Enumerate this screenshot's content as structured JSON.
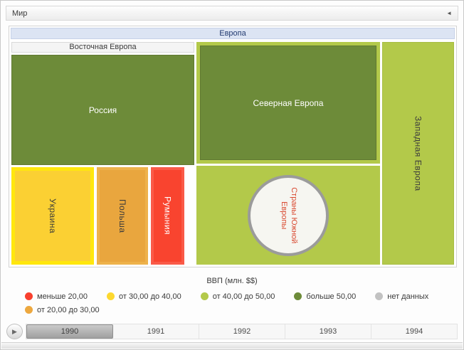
{
  "window": {
    "title": "Мир",
    "collapse_icon": "◄"
  },
  "treemap": {
    "europe": "Европа",
    "eastern_europe": "Восточная Европа",
    "russia": "Россия",
    "ukraine": "Украина",
    "poland": "Польша",
    "romania": "Румыния",
    "northern_europe": "Северная Европа",
    "southern_europe": "Страны Южной Европы",
    "western_europe": "Западная Европа"
  },
  "legend": {
    "title": "ВВП (млн. $$)",
    "items": [
      {
        "label": "меньше 20,00",
        "color": "#f8402e"
      },
      {
        "label": "от 20,00 до 30,00",
        "color": "#eda83f"
      },
      {
        "label": "от 30,00 до 40,00",
        "color": "#fdd82f"
      },
      {
        "label": "от 40,00 до 50,00",
        "color": "#b3c94a"
      },
      {
        "label": "больше 50,00",
        "color": "#6d8b39"
      },
      {
        "label": "нет данных",
        "color": "#c2c2c2"
      }
    ]
  },
  "timeline": {
    "play_icon": "▶",
    "years": [
      "1990",
      "1991",
      "1992",
      "1993",
      "1994"
    ],
    "selected_year": "1990"
  },
  "chart_data": {
    "type": "treemap",
    "title": "ВВП (млн. $$)",
    "root": "Мир",
    "selected_year": "1990",
    "years": [
      "1990",
      "1991",
      "1992",
      "1993",
      "1994"
    ],
    "nodes": [
      {
        "name": "Европа",
        "parent": "Мир",
        "level": "region"
      },
      {
        "name": "Восточная Европа",
        "parent": "Европа",
        "level": "subregion"
      },
      {
        "name": "Россия",
        "parent": "Восточная Европа",
        "category": "больше 50,00",
        "color": "#6d8b39"
      },
      {
        "name": "Украина",
        "parent": "Восточная Европа",
        "category": "от 30,00 до 40,00",
        "color": "#fbd033"
      },
      {
        "name": "Польша",
        "parent": "Восточная Европа",
        "category": "от 20,00 до 30,00",
        "color": "#e9a63e"
      },
      {
        "name": "Румыния",
        "parent": "Восточная Европа",
        "category": "меньше 20,00",
        "color": "#f9442f"
      },
      {
        "name": "Северная Европа",
        "parent": "Европа",
        "category": "больше 50,00",
        "color": "#6d8b39"
      },
      {
        "name": "Страны Южной Европы",
        "parent": "Европа",
        "category": "нет данных",
        "color": "#f6f6f1"
      },
      {
        "name": "Западная Европа",
        "parent": "Европа",
        "category": "от 40,00 до 50,00",
        "color": "#b3c94a"
      }
    ],
    "legend": {
      "title": "ВВП (млн. $$)",
      "categories": [
        {
          "label": "меньше 20,00",
          "color": "#f8402e"
        },
        {
          "label": "от 20,00 до 30,00",
          "color": "#eda83f"
        },
        {
          "label": "от 30,00 до 40,00",
          "color": "#fdd82f"
        },
        {
          "label": "от 40,00 до 50,00",
          "color": "#b3c94a"
        },
        {
          "label": "больше 50,00",
          "color": "#6d8b39"
        },
        {
          "label": "нет данных",
          "color": "#c2c2c2"
        }
      ],
      "position": "bottom"
    }
  }
}
